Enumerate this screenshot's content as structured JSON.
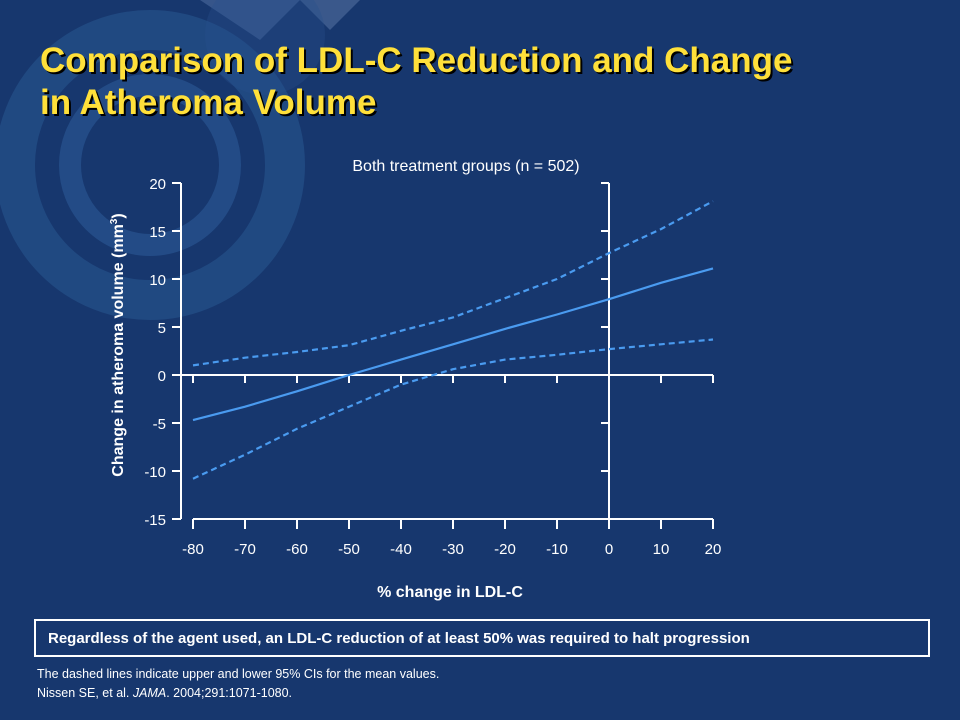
{
  "slide": {
    "title_line1": "Comparison of LDL-C Reduction and Change",
    "title_line2": "in Atheroma Volume",
    "callout": "Regardless of the agent used, an LDL-C reduction of at least 50% was required to halt progression",
    "footnote_line1": "The dashed lines indicate upper and lower 95% CIs for the mean values.",
    "footnote_ref_pre": "Nissen SE, et al. ",
    "footnote_ref_journal": "JAMA",
    "footnote_ref_post": ". 2004;291:1071-1080."
  },
  "colors": {
    "background": "#17376e",
    "title": "#ffe03a",
    "axis": "#ffffff",
    "series": "#4a9bf0"
  },
  "chart_data": {
    "type": "line",
    "subtitle": "Both treatment groups (n = 502)",
    "xlabel": "% change in LDL-C",
    "ylabel_text": "Change in atheroma volume (mm",
    "ylabel_sup": "3",
    "ylabel_close": ")",
    "xlim": [
      -80,
      20
    ],
    "ylim": [
      -15,
      20
    ],
    "xticks": [
      -80,
      -70,
      -60,
      -50,
      -40,
      -30,
      -20,
      -10,
      0,
      10,
      20
    ],
    "yticks": [
      20,
      15,
      10,
      5,
      0,
      -5,
      -10,
      -15
    ],
    "x": [
      -80,
      -70,
      -60,
      -50,
      -40,
      -30,
      -20,
      -10,
      0,
      10,
      20
    ],
    "series": [
      {
        "role": "mean",
        "style": "solid",
        "values": [
          -4.7,
          -3.3,
          -1.7,
          0.0,
          1.6,
          3.2,
          4.8,
          6.3,
          7.9,
          9.6,
          11.1
        ]
      },
      {
        "role": "upper 95% CI",
        "style": "dashed",
        "values": [
          1.0,
          1.8,
          2.4,
          3.1,
          4.6,
          6.0,
          8.0,
          10.0,
          12.7,
          15.2,
          18.1
        ]
      },
      {
        "role": "lower 95% CI",
        "style": "dashed",
        "values": [
          -10.8,
          -8.3,
          -5.6,
          -3.3,
          -1.0,
          0.6,
          1.6,
          2.1,
          2.7,
          3.2,
          3.7
        ]
      }
    ]
  }
}
